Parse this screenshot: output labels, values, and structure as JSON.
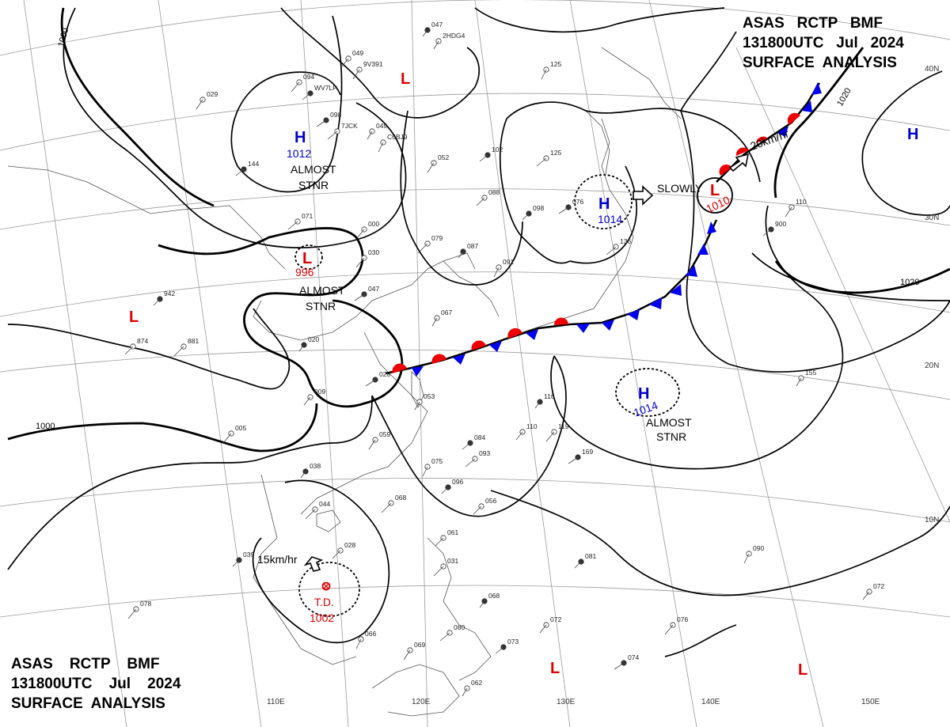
{
  "header_top_right": {
    "line1": "ASAS   RCTP   BMF",
    "line2": "131800UTC   Jul   2024",
    "line3": "SURFACE  ANALYSIS"
  },
  "header_bottom_left": {
    "line1": "ASAS    RCTP    BMF",
    "line2": "131800UTC    Jul    2024",
    "line3": "SURFACE  ANALYSIS"
  },
  "colors": {
    "high": "#0000cc",
    "low": "#dd0000",
    "warm_front": "#ee0000",
    "cold_front": "#0000ee",
    "isobar": "#000000"
  },
  "longitude_labels": [
    "110E",
    "120E",
    "130E",
    "140E",
    "150E"
  ],
  "latitude_labels": [
    "40N",
    "30N",
    "20N",
    "10N"
  ],
  "isobar_labels": {
    "n1000_nw": "1000",
    "n1000_w": "1000",
    "n1020_ne": "1020",
    "n1020_e": "1020"
  },
  "pressure_systems": [
    {
      "type": "H",
      "value": "1012",
      "note1": "ALMOST",
      "note2": "STNR"
    },
    {
      "type": "L",
      "value": "996",
      "note1": "ALMOST",
      "note2": "STNR"
    },
    {
      "type": "H",
      "value": "1014",
      "movement": "SLOWLY"
    },
    {
      "type": "L",
      "value": "1010",
      "movement": "20km/hr"
    },
    {
      "type": "H",
      "value": "1014",
      "note1": "ALMOST",
      "note2": "STNR"
    },
    {
      "type": "TD",
      "label": "T.D.",
      "value": "1002",
      "movement": "15km/hr"
    },
    {
      "type": "H"
    },
    {
      "type": "L"
    },
    {
      "type": "L"
    },
    {
      "type": "L"
    },
    {
      "type": "L"
    },
    {
      "type": "L"
    }
  ],
  "station_texts": [
    "047",
    "049",
    "094",
    "098",
    "049",
    "052",
    "102",
    "125",
    "125",
    "098",
    "088",
    "079",
    "087",
    "000",
    "030",
    "047",
    "067",
    "029",
    "144",
    "071",
    "091",
    "942",
    "874",
    "881",
    "020",
    "009",
    "005",
    "028",
    "053",
    "059",
    "084",
    "093",
    "075",
    "096",
    "056",
    "068",
    "116",
    "110",
    "119",
    "169",
    "155",
    "110",
    "900",
    "136",
    "090",
    "081",
    "061",
    "031",
    "068",
    "072",
    "076",
    "074",
    "062",
    "069",
    "073",
    "080",
    "066",
    "039",
    "028",
    "044",
    "038",
    "072",
    "078",
    "076",
    "2HDG4",
    "9V391",
    "WV7LP",
    "7JCK",
    "C6BJ9"
  ]
}
